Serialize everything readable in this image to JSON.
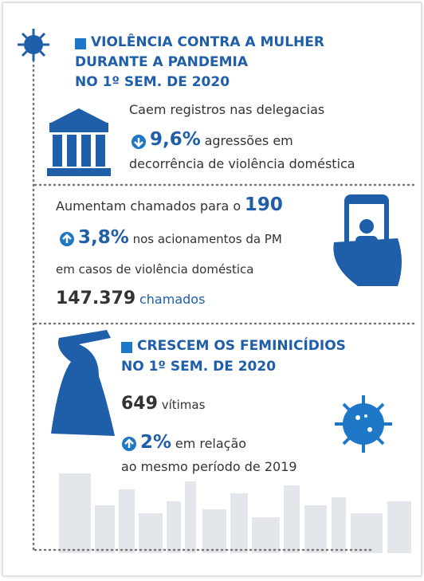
{
  "header": {
    "title_lines": [
      "VIOLÊNCIA CONTRA A MULHER",
      "DURANTE A PANDEMIA",
      "NO 1º SEM. DE 2020"
    ]
  },
  "delegacias": {
    "heading": "Caem registros nas delegacias",
    "figure": "9,6%",
    "text": "agressões em",
    "text2": "decorrência de violência doméstica"
  },
  "chamados": {
    "heading": "Aumentam chamados para o",
    "number": "190",
    "figure": "3,8%",
    "text": "nos acionamentos da PM",
    "text2": "em casos de violência doméstica",
    "total": "147.379",
    "total_unit": "chamados"
  },
  "feminicidios": {
    "title_lines": [
      "CRESCEM OS FEMINICÍDIOS",
      "NO 1º SEM. DE 2020"
    ],
    "victims": "649",
    "victims_unit": "vítimas",
    "figure": "2%",
    "text": "em relação",
    "text2": "ao mesmo período de 2019"
  }
}
